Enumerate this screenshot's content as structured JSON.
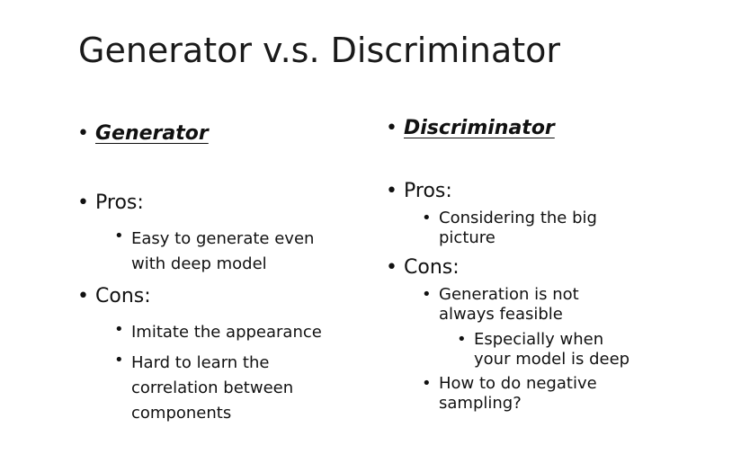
{
  "slide": {
    "title": "Generator v.s. Discriminator",
    "left": {
      "heading": "Generator",
      "pros_label": "Pros:",
      "pros": [
        [
          "Easy to generate even",
          "with deep model"
        ]
      ],
      "cons_label": "Cons:",
      "cons": [
        [
          "Imitate the appearance"
        ],
        [
          "Hard to learn the",
          "correlation between",
          "components"
        ]
      ]
    },
    "right": {
      "heading": "Discriminator",
      "pros_label": "Pros:",
      "pros": [
        [
          "Considering the big",
          "picture"
        ]
      ],
      "cons_label": "Cons:",
      "cons": [
        [
          "Generation is not",
          "always feasible"
        ],
        [
          "How to do negative",
          "sampling?"
        ]
      ],
      "cons_sub": [
        [
          "Especially when",
          "your model is deep"
        ]
      ]
    }
  }
}
